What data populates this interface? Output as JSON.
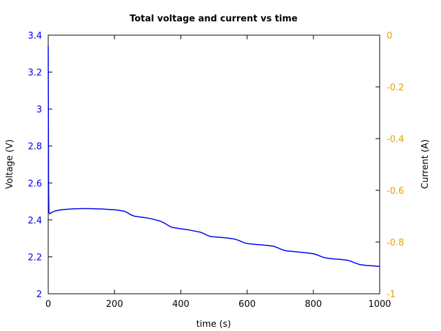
{
  "chart_data": {
    "type": "line",
    "title": "Total voltage and current vs time",
    "xlabel": "time (s)",
    "ylabel": "Voltage (V)",
    "y2label": "Current (A)",
    "xlim": [
      0,
      1000
    ],
    "ylim": [
      2,
      3.4
    ],
    "y2lim": [
      -1,
      0
    ],
    "xticks": [
      "0",
      "200",
      "400",
      "600",
      "800",
      "1000"
    ],
    "yticks": [
      "2",
      "2.2",
      "2.4",
      "2.6",
      "2.8",
      "3",
      "3.2",
      "3.4"
    ],
    "y2ticks": [
      "0",
      "-0.2",
      "-0.4",
      "-0.6",
      "-0.8",
      "-1"
    ],
    "grid": false,
    "colors": {
      "voltage_axis": "#0000ee",
      "current_axis": "#e69f00",
      "voltage_line": "#0000ee"
    },
    "series": [
      {
        "axis": "left",
        "x": [
          0,
          0.5,
          1,
          2,
          5,
          10,
          20,
          40,
          60,
          80,
          100,
          120,
          140,
          160,
          180,
          200,
          220,
          230,
          240,
          250,
          260,
          280,
          300,
          320,
          340,
          350,
          360,
          370,
          380,
          400,
          420,
          440,
          460,
          470,
          480,
          490,
          500,
          520,
          540,
          560,
          570,
          580,
          590,
          600,
          620,
          640,
          660,
          680,
          690,
          700,
          710,
          720,
          740,
          760,
          780,
          800,
          810,
          820,
          830,
          840,
          860,
          880,
          900,
          910,
          920,
          930,
          940,
          960,
          980,
          1000
        ],
        "y": [
          3.34,
          3.0,
          2.6,
          2.44,
          2.433,
          2.44,
          2.448,
          2.455,
          2.458,
          2.46,
          2.461,
          2.461,
          2.46,
          2.459,
          2.457,
          2.455,
          2.45,
          2.447,
          2.438,
          2.427,
          2.42,
          2.415,
          2.41,
          2.402,
          2.392,
          2.383,
          2.372,
          2.362,
          2.357,
          2.352,
          2.347,
          2.34,
          2.333,
          2.325,
          2.316,
          2.31,
          2.308,
          2.305,
          2.302,
          2.297,
          2.292,
          2.285,
          2.277,
          2.272,
          2.268,
          2.265,
          2.262,
          2.257,
          2.251,
          2.243,
          2.236,
          2.232,
          2.229,
          2.225,
          2.221,
          2.217,
          2.211,
          2.204,
          2.197,
          2.193,
          2.189,
          2.186,
          2.182,
          2.178,
          2.171,
          2.164,
          2.158,
          2.153,
          2.151,
          2.148
        ]
      }
    ]
  }
}
